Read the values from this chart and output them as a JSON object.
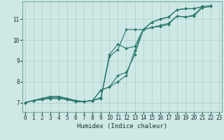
{
  "xlabel": "Humidex (Indice chaleur)",
  "bg_color": "#cde8e5",
  "grid_color": "#b8d4d0",
  "line_color": "#2d7a6e",
  "lines": [
    {
      "x": [
        0,
        1,
        2,
        3,
        4,
        5,
        6,
        7,
        8,
        9,
        10,
        11,
        12,
        13,
        14,
        15,
        16,
        17,
        18,
        19,
        20,
        21,
        22,
        23
      ],
      "y": [
        7.0,
        7.1,
        7.15,
        7.2,
        7.2,
        7.15,
        7.05,
        7.05,
        7.1,
        7.6,
        7.75,
        8.3,
        8.45,
        9.3,
        10.5,
        10.85,
        11.0,
        11.1,
        11.45,
        11.5,
        11.5,
        11.6,
        11.65,
        null
      ]
    },
    {
      "x": [
        0,
        1,
        2,
        3,
        4,
        5,
        6,
        7,
        8,
        9,
        10,
        11,
        12,
        13,
        14,
        15,
        16,
        17,
        18,
        19,
        20,
        21,
        22,
        23
      ],
      "y": [
        7.0,
        7.1,
        7.15,
        7.2,
        7.2,
        7.15,
        7.05,
        7.05,
        7.1,
        7.6,
        7.75,
        8.0,
        8.3,
        9.5,
        10.5,
        10.85,
        11.0,
        11.1,
        11.45,
        11.5,
        11.5,
        11.6,
        null,
        null
      ]
    },
    {
      "x": [
        0,
        1,
        2,
        3,
        4,
        5,
        6,
        7,
        8,
        9,
        10,
        11,
        12,
        13,
        14,
        15,
        16,
        17,
        18,
        19,
        20,
        21,
        22,
        23
      ],
      "y": [
        7.0,
        7.1,
        7.2,
        7.25,
        7.25,
        7.2,
        7.1,
        7.05,
        7.1,
        7.2,
        9.2,
        9.55,
        10.5,
        10.5,
        10.5,
        10.6,
        10.65,
        10.75,
        11.15,
        11.1,
        11.15,
        11.55,
        11.6,
        null
      ]
    },
    {
      "x": [
        0,
        1,
        2,
        3,
        4,
        5,
        6,
        7,
        8,
        9,
        10,
        11,
        12,
        13,
        14,
        15,
        16,
        17,
        18,
        19,
        20,
        21,
        22,
        23
      ],
      "y": [
        7.0,
        7.1,
        7.2,
        7.3,
        7.3,
        7.2,
        7.1,
        7.05,
        7.1,
        7.25,
        9.3,
        9.8,
        9.6,
        9.7,
        10.5,
        10.6,
        10.7,
        10.8,
        11.15,
        11.1,
        11.2,
        11.6,
        null,
        null
      ]
    }
  ],
  "xlim": [
    -0.3,
    23.3
  ],
  "ylim": [
    6.55,
    11.85
  ],
  "xticks": [
    0,
    1,
    2,
    3,
    4,
    5,
    6,
    7,
    8,
    9,
    10,
    11,
    12,
    13,
    14,
    15,
    16,
    17,
    18,
    19,
    20,
    21,
    22,
    23
  ],
  "yticks": [
    7,
    8,
    9,
    10,
    11
  ],
  "markersize": 2.0,
  "linewidth": 0.85
}
